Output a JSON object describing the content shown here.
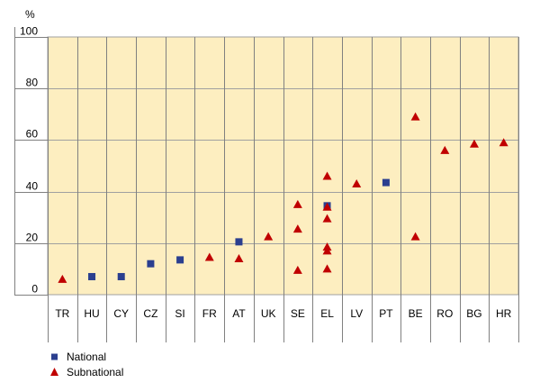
{
  "chart_data": {
    "type": "scatter",
    "ylabel": "%",
    "ylim": [
      0,
      100
    ],
    "yticks": [
      0,
      20,
      40,
      60,
      80,
      100
    ],
    "grid": true,
    "legend_position": "bottom-left",
    "categories": [
      "TR",
      "HU",
      "CY",
      "CZ",
      "SI",
      "FR",
      "AT",
      "UK",
      "SE",
      "EL",
      "LV",
      "PT",
      "BE",
      "RO",
      "BG",
      "HR"
    ],
    "series": [
      {
        "name": "National",
        "marker": "square",
        "color": "#2b3f8f",
        "points": [
          {
            "x": "HU",
            "y": 7
          },
          {
            "x": "CY",
            "y": 7
          },
          {
            "x": "CZ",
            "y": 12
          },
          {
            "x": "SI",
            "y": 13.5
          },
          {
            "x": "AT",
            "y": 20.5
          },
          {
            "x": "EL",
            "y": 34.5
          },
          {
            "x": "PT",
            "y": 43.5
          }
        ]
      },
      {
        "name": "Subnational",
        "marker": "triangle",
        "color": "#c00000",
        "points": [
          {
            "x": "TR",
            "y": 6
          },
          {
            "x": "FR",
            "y": 14.5
          },
          {
            "x": "AT",
            "y": 14
          },
          {
            "x": "UK",
            "y": 22.5
          },
          {
            "x": "SE",
            "y": 35
          },
          {
            "x": "SE",
            "y": 25.5
          },
          {
            "x": "SE",
            "y": 9.5
          },
          {
            "x": "EL",
            "y": 46
          },
          {
            "x": "EL",
            "y": 34
          },
          {
            "x": "EL",
            "y": 29.5
          },
          {
            "x": "EL",
            "y": 18.5
          },
          {
            "x": "EL",
            "y": 17
          },
          {
            "x": "EL",
            "y": 10
          },
          {
            "x": "LV",
            "y": 43
          },
          {
            "x": "BE",
            "y": 69
          },
          {
            "x": "BE",
            "y": 22.5
          },
          {
            "x": "RO",
            "y": 56
          },
          {
            "x": "BG",
            "y": 58.5
          },
          {
            "x": "HR",
            "y": 59
          }
        ]
      }
    ],
    "colors": {
      "plot_background": "#fdeec0",
      "gridline": "#a0a0a0"
    }
  }
}
